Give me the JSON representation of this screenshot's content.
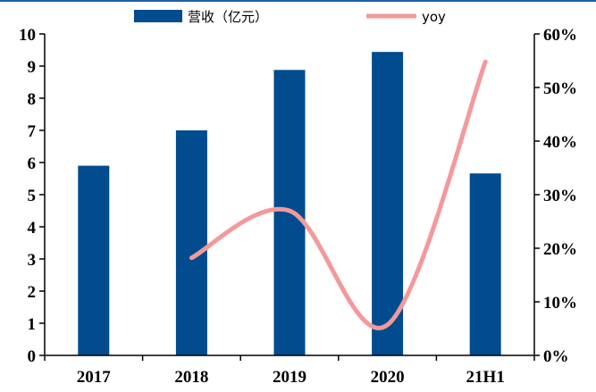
{
  "chart_data": {
    "type": "bar",
    "categories": [
      "2017",
      "2018",
      "2019",
      "2020",
      "21H1"
    ],
    "series": [
      {
        "name": "营收（亿元）",
        "type": "bar",
        "axis": "left",
        "values": [
          5.9,
          7.0,
          8.88,
          9.44,
          5.66
        ]
      },
      {
        "name": "yoy",
        "type": "line",
        "axis": "right",
        "values": [
          null,
          18.2,
          27.0,
          5.7,
          54.8
        ]
      }
    ],
    "ylim_left": [
      0,
      10
    ],
    "yticks_left": [
      "0",
      "1",
      "2",
      "3",
      "4",
      "5",
      "6",
      "7",
      "8",
      "9",
      "10"
    ],
    "ylim_right": [
      0,
      60
    ],
    "yticks_right": [
      "0%",
      "10%",
      "20%",
      "30%",
      "40%",
      "50%",
      "60%"
    ],
    "grid": false,
    "legend_position": "top",
    "colors": {
      "bar": "#004C8F",
      "line": "#F4999B",
      "axis": "#000000",
      "top_rule": "#1F5FA8"
    }
  }
}
